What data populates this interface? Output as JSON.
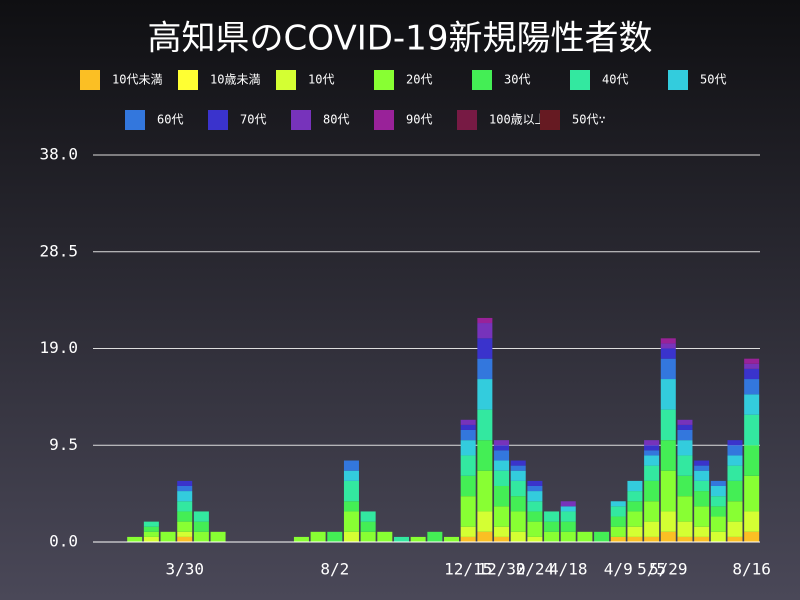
{
  "chart_data": {
    "type": "stacked-bar",
    "title": "高知県のCOVID-19新規陽性者数",
    "categories": [
      null,
      null,
      null,
      null,
      null,
      "3/30",
      null,
      null,
      null,
      null,
      null,
      null,
      null,
      null,
      "8/2",
      null,
      null,
      null,
      null,
      null,
      null,
      null,
      "12/15",
      null,
      "12/30",
      null,
      "2/24",
      null,
      "4/18",
      null,
      null,
      "4/9",
      null,
      "5/5",
      "5/29",
      null,
      null,
      null,
      null,
      "8/16"
    ],
    "ylim": [
      0,
      38
    ],
    "yticks": [
      {
        "value": 0,
        "label": "0.0"
      },
      9.5,
      {
        "value": 19,
        "label": "19.0"
      },
      28.5,
      {
        "value": 38,
        "label": "38.0"
      }
    ],
    "grid": true,
    "series": [
      {
        "name": "10代未満",
        "color": "#fbbf24",
        "values": [
          0,
          0,
          0,
          0,
          0,
          0.5,
          0,
          0,
          0,
          0,
          0,
          0,
          0,
          0,
          0,
          0,
          0,
          0,
          0,
          0,
          0,
          0,
          0.5,
          1,
          0.5,
          0,
          0,
          0,
          0,
          0,
          0,
          0.5,
          0.5,
          0.5,
          1,
          0.5,
          0.5,
          0,
          0.5,
          1
        ]
      },
      {
        "name": "10歳未満",
        "color": "#ffff33",
        "values": [
          0,
          0,
          0,
          0,
          0,
          0,
          0,
          0,
          0,
          0,
          0,
          0,
          0,
          0,
          0,
          0,
          0,
          0,
          0,
          0,
          0,
          0,
          0,
          0,
          0,
          0,
          0,
          0,
          0,
          0,
          0,
          0,
          0,
          0,
          0,
          0,
          0,
          0,
          0,
          0
        ]
      },
      {
        "name": "10代",
        "color": "#d4ff33",
        "values": [
          0,
          0,
          0,
          0.5,
          0,
          0.5,
          0,
          0,
          0,
          0,
          0,
          0,
          0,
          0,
          0,
          1,
          0,
          0,
          0,
          0,
          0,
          0,
          1,
          2,
          1,
          1,
          0.5,
          0,
          0,
          0,
          0,
          0,
          1,
          1.5,
          2,
          1.5,
          1,
          1,
          1.5,
          2
        ]
      },
      {
        "name": "20代",
        "color": "#88ff33",
        "values": [
          0,
          0,
          0.5,
          0.5,
          1,
          1,
          1,
          1,
          0,
          0,
          0,
          0,
          0.5,
          1,
          0,
          2,
          1,
          1,
          0,
          0.5,
          0,
          0.5,
          3,
          4,
          2,
          2,
          1.5,
          1,
          1,
          1,
          0,
          1,
          1.5,
          2,
          4,
          2.5,
          2,
          1.5,
          2,
          3.5
        ]
      },
      {
        "name": "30代",
        "color": "#44ee55",
        "values": [
          0,
          0,
          0,
          0.5,
          0,
          1,
          1,
          0,
          0,
          0,
          0,
          0,
          0,
          0,
          1,
          1,
          1,
          0,
          0,
          0,
          1,
          0,
          2,
          3,
          2,
          1.5,
          1,
          1,
          1,
          0,
          1,
          1,
          1,
          2,
          3,
          2,
          1.5,
          1,
          2,
          3
        ]
      },
      {
        "name": "40代",
        "color": "#33e8a0",
        "values": [
          0,
          0,
          0,
          0.5,
          0,
          1,
          1,
          0,
          0,
          0,
          0,
          0,
          0,
          0,
          0,
          2,
          1,
          0,
          0.5,
          0,
          0,
          0,
          2,
          3,
          1.5,
          1.5,
          1,
          1,
          1,
          0,
          0,
          1,
          1,
          1.5,
          3,
          2,
          1,
          1,
          1.5,
          3
        ]
      },
      {
        "name": "50代",
        "color": "#33ccdd",
        "values": [
          0,
          0,
          0,
          0,
          0,
          1,
          0,
          0,
          0,
          0,
          0,
          0,
          0,
          0,
          0,
          1,
          0,
          0,
          0,
          0,
          0,
          0,
          1.5,
          3,
          1,
          1,
          1,
          0,
          0.5,
          0,
          0,
          0.5,
          1,
          1,
          3,
          1.5,
          1,
          1,
          1,
          2
        ]
      },
      {
        "name": "60代",
        "color": "#3377dd",
        "values": [
          0,
          0,
          0,
          0,
          0,
          0.5,
          0,
          0,
          0,
          0,
          0,
          0,
          0,
          0,
          0,
          1,
          0,
          0,
          0,
          0,
          0,
          0,
          1,
          2,
          1,
          0.5,
          0.5,
          0,
          0,
          0,
          0,
          0,
          0,
          0.5,
          2,
          1,
          0.5,
          0.5,
          1,
          1.5
        ]
      },
      {
        "name": "70代",
        "color": "#3a33cc",
        "values": [
          0,
          0,
          0,
          0,
          0,
          0.5,
          0,
          0,
          0,
          0,
          0,
          0,
          0,
          0,
          0,
          0,
          0,
          0,
          0,
          0,
          0,
          0,
          0.5,
          2,
          0.5,
          0.5,
          0.5,
          0,
          0,
          0,
          0,
          0,
          0,
          0.5,
          1,
          0.5,
          0.5,
          0,
          0.5,
          1
        ]
      },
      {
        "name": "80代",
        "color": "#7733bb",
        "values": [
          0,
          0,
          0,
          0,
          0,
          0,
          0,
          0,
          0,
          0,
          0,
          0,
          0,
          0,
          0,
          0,
          0,
          0,
          0,
          0,
          0,
          0,
          0.5,
          1.5,
          0.5,
          0,
          0,
          0,
          0.5,
          0,
          0,
          0,
          0,
          0.5,
          0.5,
          0.5,
          0,
          0,
          0,
          0.5
        ]
      },
      {
        "name": "90代",
        "color": "#992299",
        "values": [
          0,
          0,
          0,
          0,
          0,
          0,
          0,
          0,
          0,
          0,
          0,
          0,
          0,
          0,
          0,
          0,
          0,
          0,
          0,
          0,
          0,
          0,
          0,
          0.5,
          0,
          0,
          0,
          0,
          0,
          0,
          0,
          0,
          0,
          0,
          0.5,
          0,
          0,
          0,
          0,
          0.5
        ]
      },
      {
        "name": "100歳以上",
        "color": "#771a44",
        "values": [
          0,
          0,
          0,
          0,
          0,
          0,
          0,
          0,
          0,
          0,
          0,
          0,
          0,
          0,
          0,
          0,
          0,
          0,
          0,
          0,
          0,
          0,
          0,
          0,
          0,
          0,
          0,
          0,
          0,
          0,
          0,
          0,
          0,
          0,
          0,
          0,
          0,
          0,
          0,
          0
        ]
      },
      {
        "name": "50代∵",
        "color": "#661a22",
        "values": [
          0,
          0,
          0,
          0,
          0,
          0,
          0,
          0,
          0,
          0,
          0,
          0,
          0,
          0,
          0,
          0,
          0,
          0,
          0,
          0,
          0,
          0,
          0,
          0,
          0,
          0,
          0,
          0,
          0,
          0,
          0,
          0,
          0,
          0,
          0,
          0,
          0,
          0,
          0,
          0
        ]
      }
    ]
  }
}
